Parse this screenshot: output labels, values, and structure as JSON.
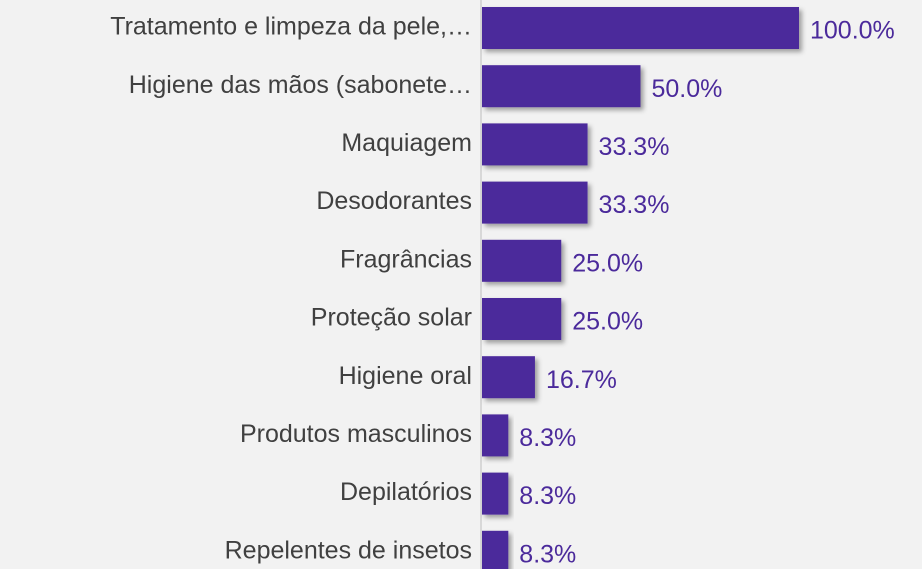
{
  "chart_data": {
    "type": "bar",
    "orientation": "horizontal",
    "categories": [
      "Tratamento e limpeza da pele,…",
      "Higiene das mãos (sabonete…",
      "Maquiagem",
      "Desodorantes",
      "Fragrâncias",
      "Proteção solar",
      "Higiene oral",
      "Produtos masculinos",
      "Depilatórios",
      "Repelentes de insetos"
    ],
    "values": [
      100,
      50,
      33.3,
      33.3,
      25,
      25,
      16.7,
      8.3,
      8.3,
      8.3
    ],
    "value_labels": [
      "100.0%",
      "50.0%",
      "33.3%",
      "33.3%",
      "25.0%",
      "25.0%",
      "16.7%",
      "8.3%",
      "8.3%",
      "8.3%"
    ],
    "color": "#4b2a9b"
  }
}
